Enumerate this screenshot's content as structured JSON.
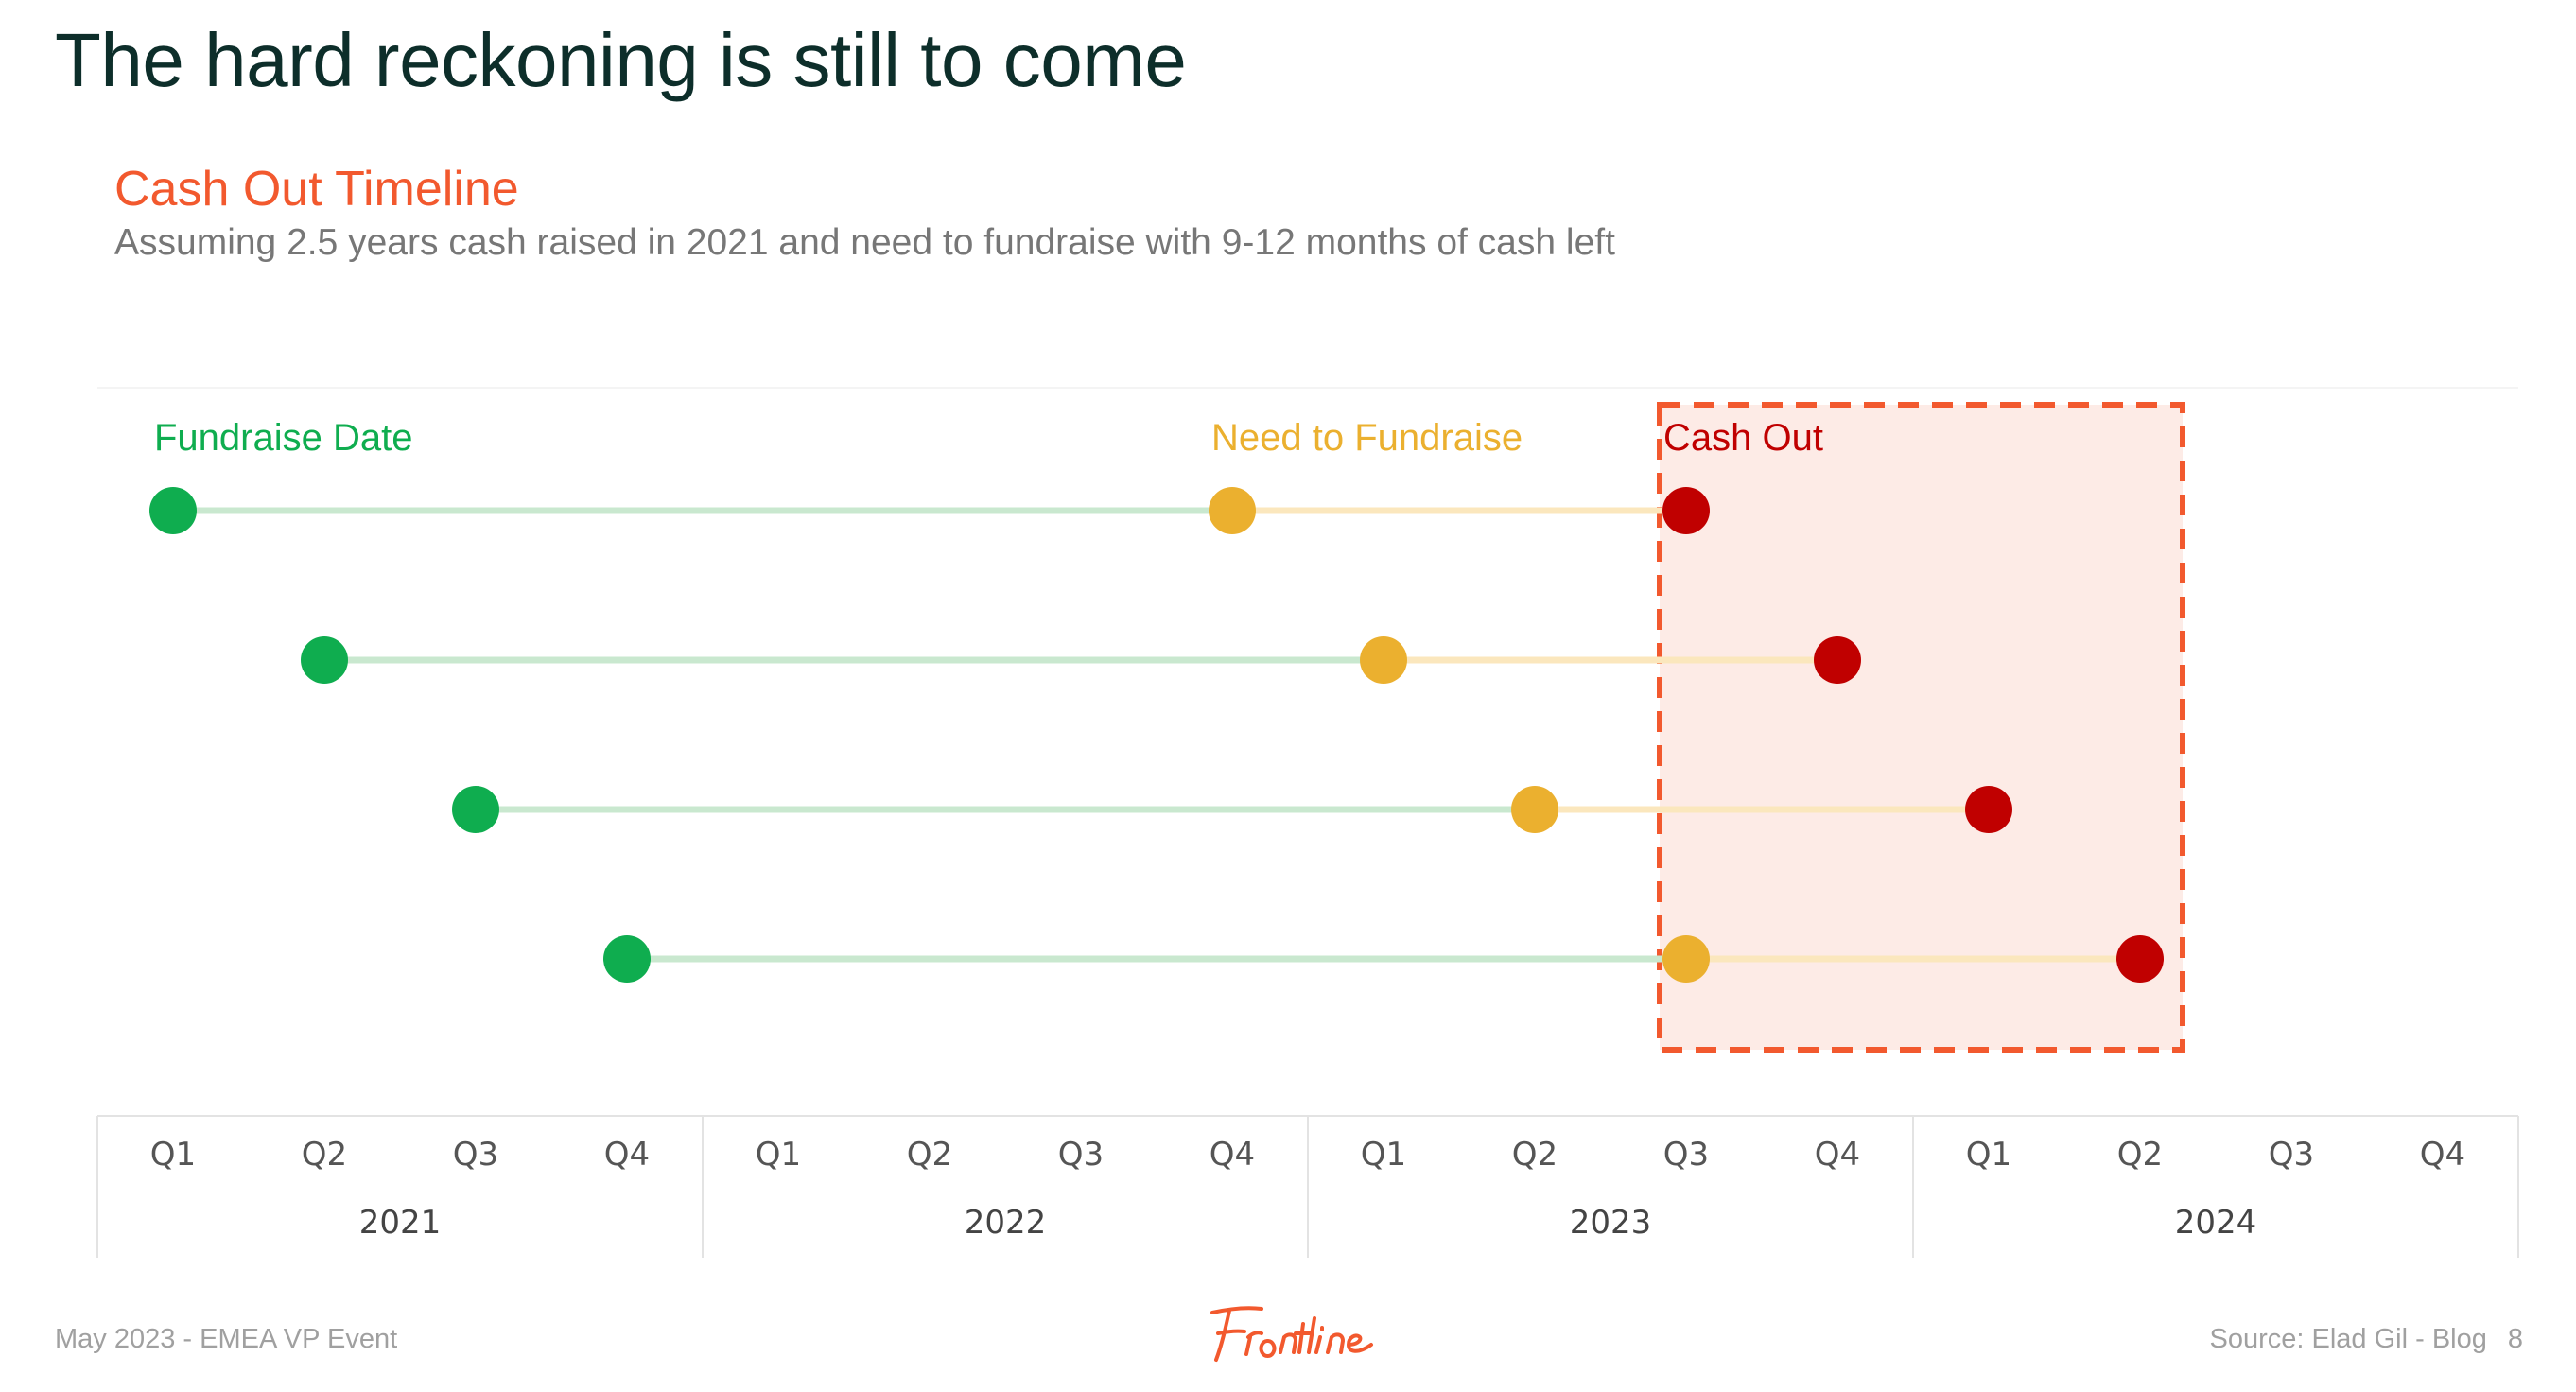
{
  "slide": {
    "title": "The hard reckoning is still to come"
  },
  "chart_data": {
    "type": "timeline",
    "title": "Cash Out Timeline",
    "subtitle": "Assuming 2.5 years cash raised in 2021 and need to fundraise with 9-12 months of cash left",
    "time_unit": "quarter",
    "years": [
      "2021",
      "2022",
      "2023",
      "2024"
    ],
    "quarters": [
      "Q1",
      "Q2",
      "Q3",
      "Q4"
    ],
    "legend": [
      {
        "label": "Fundraise Date",
        "color": "#0fad4f"
      },
      {
        "label": "Need to Fundraise",
        "color": "#ebb02f"
      },
      {
        "label": "Cash Out",
        "color": "#c00000"
      }
    ],
    "series": [
      {
        "fundraise": "2021 Q1",
        "need_to_fundraise": "2022 Q4",
        "cash_out": "2023 Q3"
      },
      {
        "fundraise": "2021 Q2",
        "need_to_fundraise": "2023 Q1",
        "cash_out": "2023 Q4"
      },
      {
        "fundraise": "2021 Q3",
        "need_to_fundraise": "2023 Q2",
        "cash_out": "2024 Q1"
      },
      {
        "fundraise": "2021 Q4",
        "need_to_fundraise": "2023 Q3",
        "cash_out": "2024 Q2"
      }
    ],
    "highlight_range": {
      "from": "2023 Q3",
      "to": "2024 Q2"
    },
    "colors": {
      "fundraise_line": "#c9e8cf",
      "need_line": "#fbe7bd",
      "highlight_border": "#f2592e",
      "highlight_fill": "#fdebe6"
    }
  },
  "footer": {
    "left": "May 2023 - EMEA VP Event",
    "source": "Source: Elad Gil - Blog",
    "page_number": "8"
  },
  "logo": {
    "name": "frontline-logo",
    "color": "#f2592e"
  }
}
